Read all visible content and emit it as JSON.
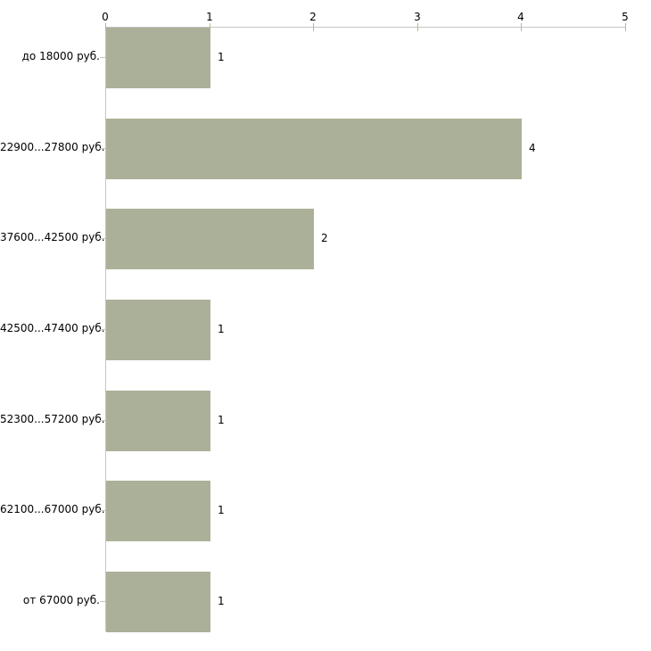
{
  "chart_data": {
    "type": "bar",
    "orientation": "horizontal",
    "title": "",
    "categories": [
      "до 18000 руб.",
      "22900...27800 руб.",
      "37600...42500 руб.",
      "42500...47400 руб.",
      "52300...57200 руб.",
      "62100...67000 руб.",
      "от 67000 руб."
    ],
    "values": [
      1,
      4,
      2,
      1,
      1,
      1,
      1
    ],
    "value_labels": [
      "1",
      "4",
      "2",
      "1",
      "1",
      "1",
      "1"
    ],
    "xlabel": "",
    "ylabel": "",
    "xlim": [
      0,
      5
    ],
    "x_ticks": [
      "0",
      "1",
      "2",
      "3",
      "4",
      "5"
    ],
    "x_axis_position": "top",
    "grid": false,
    "legend": false,
    "colors": {
      "bar": "#abb198",
      "axis_line": "#c5c5c5",
      "tick_mark": "#b6ba8c",
      "category_tick": "#c5c5c5",
      "text": "#000000",
      "background": "#ffffff"
    }
  }
}
